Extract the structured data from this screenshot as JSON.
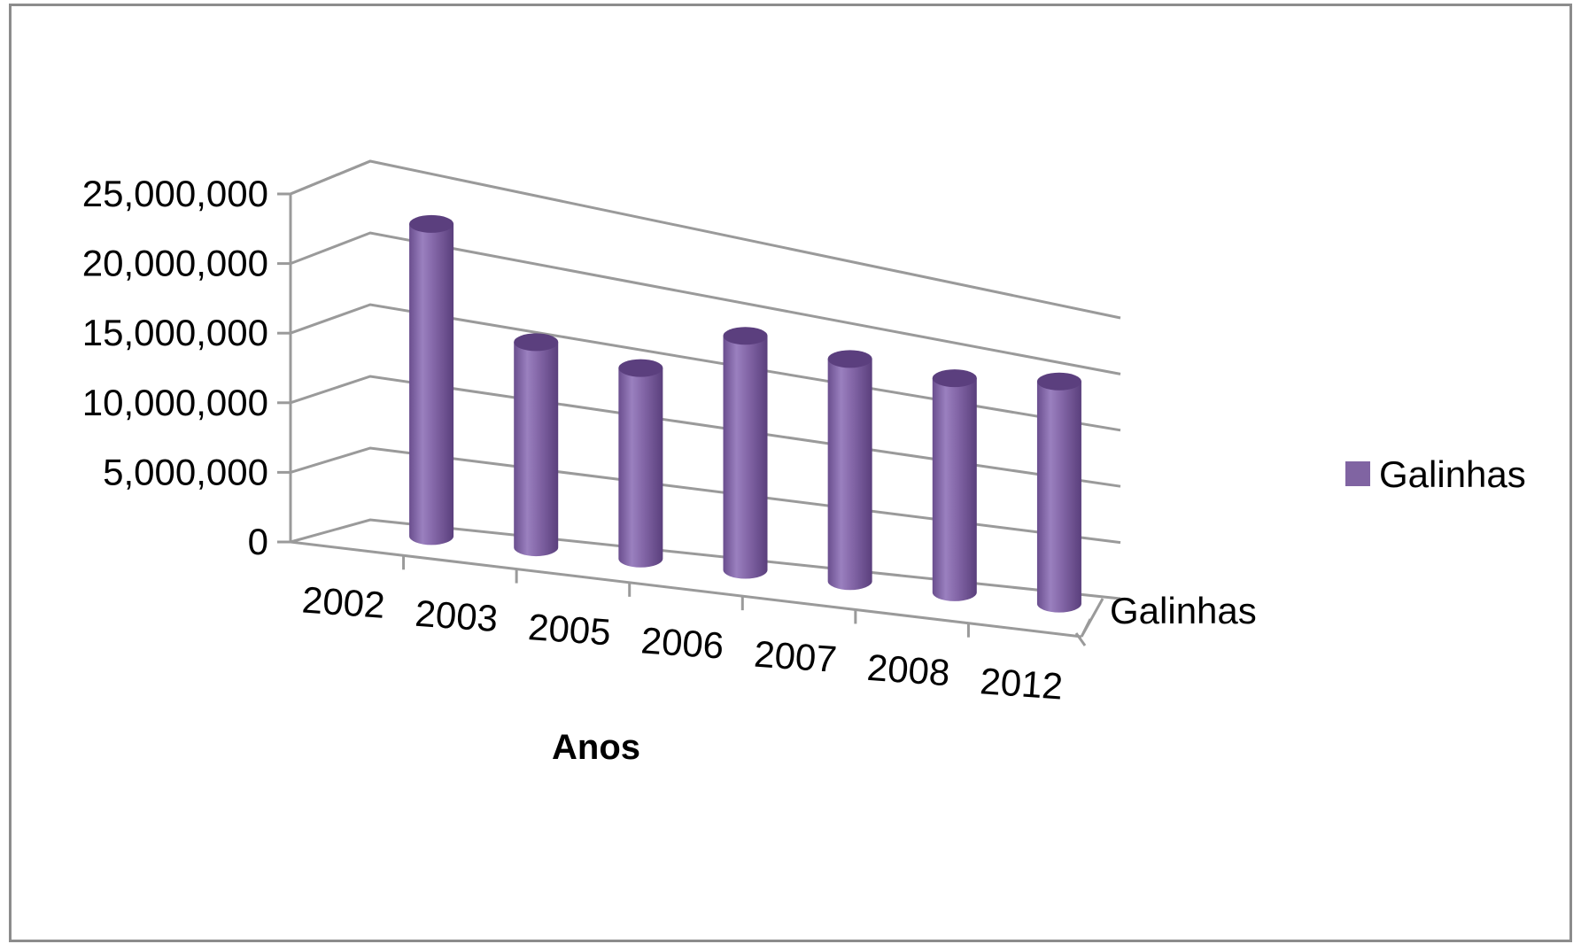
{
  "chart_data": {
    "type": "bar",
    "style": "3d-cylinder",
    "categories": [
      "2002",
      "2003",
      "2005",
      "2006",
      "2007",
      "2008",
      "2012"
    ],
    "series": [
      {
        "name": "Galinhas",
        "values": [
          22100000,
          15000000,
          14400000,
          18300000,
          18000000,
          18000000,
          19400000
        ],
        "color": "#8064a2"
      }
    ],
    "xlabel": "Anos",
    "depth_axis_label": "Galinhas",
    "ylim": [
      0,
      25000000
    ],
    "y_ticks": [
      0,
      5000000,
      10000000,
      15000000,
      20000000,
      25000000
    ],
    "y_tick_labels": [
      "0",
      "5,000,000",
      "10,000,000",
      "15,000,000",
      "20,000,000",
      "25,000,000"
    ],
    "grid": true,
    "legend": {
      "position": "right",
      "entries": [
        "Galinhas"
      ]
    }
  }
}
